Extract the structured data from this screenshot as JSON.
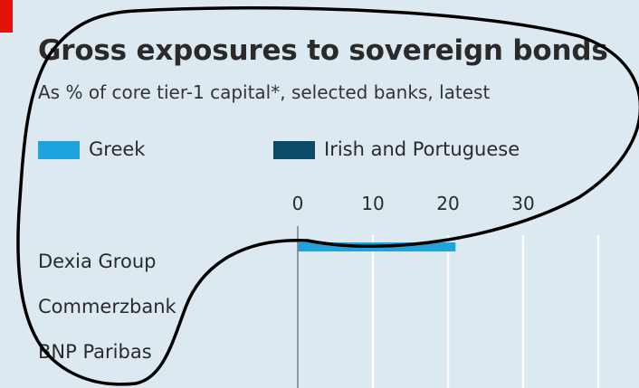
{
  "chart_data": {
    "type": "bar",
    "title": "Gross exposures to sovereign bonds",
    "subtitle": "As % of core tier-1 capital*, selected banks, latest",
    "orientation": "horizontal",
    "stacked": true,
    "categories": [
      "Dexia Group",
      "Commerzbank",
      "BNP Paribas"
    ],
    "series": [
      {
        "name": "Greek",
        "color": "#1ea3dc",
        "values": [
          21,
          null,
          null
        ]
      },
      {
        "name": "Irish and Portuguese",
        "color": "#0d4a68",
        "values": [
          null,
          null,
          null
        ]
      }
    ],
    "x_ticks": [
      "0",
      "10",
      "20",
      "30"
    ],
    "xlim": [
      0,
      40
    ],
    "legend_position": "top",
    "grid": true
  },
  "colors": {
    "panel_background": "#dde9f0",
    "accent_tab": "#e3120b",
    "gridline": "#ffffff",
    "outline": "#000000"
  }
}
